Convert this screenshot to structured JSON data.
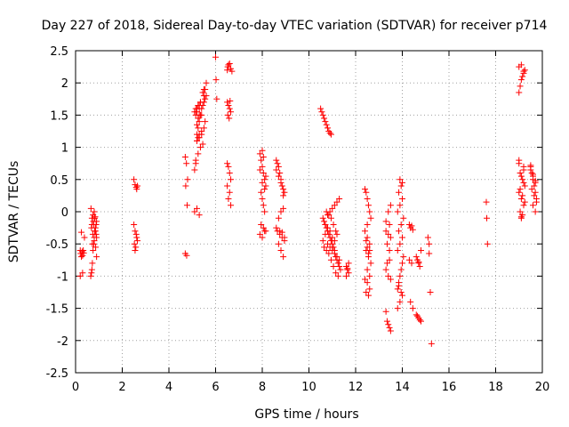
{
  "chart_data": {
    "type": "scatter",
    "title": "Day 227 of 2018, Sidereal Day-to-day VTEC variation (SDTVAR) for receiver p714",
    "xlabel": "GPS time / hours",
    "ylabel": "SDTVAR / TECUs",
    "xlim": [
      0,
      20
    ],
    "ylim": [
      -2.5,
      2.5
    ],
    "xticks": [
      0,
      2,
      4,
      6,
      8,
      10,
      12,
      14,
      16,
      18,
      20
    ],
    "yticks": [
      2.5,
      2,
      1.5,
      1,
      0.5,
      0,
      -0.5,
      -1,
      -1.5,
      -2,
      -2.5
    ],
    "ytick_labels": [
      "2.5",
      "2",
      "1.5",
      "1",
      "0.5",
      "0",
      "-0.5",
      "-1",
      "-1.5",
      "-2",
      "-2.5"
    ],
    "grid": true,
    "marker": "plus",
    "color": "#ff0000",
    "series": [
      {
        "name": "SDTVAR",
        "x": [
          0.2,
          0.22,
          0.25,
          0.28,
          0.3,
          0.33,
          0.35,
          0.2,
          0.3,
          0.38,
          0.25,
          0.65,
          0.68,
          0.7,
          0.72,
          0.75,
          0.78,
          0.8,
          0.82,
          0.85,
          0.88,
          0.9,
          0.7,
          0.75,
          0.8,
          0.85,
          0.9,
          0.72,
          0.78,
          0.82,
          0.88,
          0.66,
          0.7,
          0.74,
          0.8,
          0.86,
          0.9,
          0.68,
          0.76,
          0.84,
          2.5,
          2.55,
          2.6,
          2.62,
          2.65,
          2.5,
          2.55,
          2.6,
          2.65,
          2.52,
          2.58,
          2.62,
          2.55,
          4.7,
          4.75,
          4.8,
          4.72,
          4.78,
          4.7,
          4.76,
          5.1,
          5.15,
          5.2,
          5.25,
          5.3,
          5.35,
          5.4,
          5.45,
          5.5,
          5.55,
          5.6,
          5.15,
          5.2,
          5.3,
          5.35,
          5.45,
          5.5,
          5.6,
          5.2,
          5.25,
          5.3,
          5.4,
          5.5,
          5.55,
          5.1,
          5.2,
          5.3,
          5.4,
          5.15,
          5.25,
          5.35,
          5.45,
          5.2,
          5.3,
          5.4,
          5.1,
          5.2,
          5.3,
          5.2,
          5.25,
          5.3,
          5.15,
          5.25,
          5.35,
          5.5,
          5.55,
          6.0,
          6.02,
          6.05,
          6.5,
          6.52,
          6.55,
          6.6,
          6.65,
          6.7,
          6.5,
          6.55,
          6.6,
          6.65,
          6.52,
          6.58,
          6.62,
          6.5,
          6.55,
          6.6,
          6.65,
          6.5,
          6.6,
          6.55,
          6.65,
          7.9,
          7.95,
          8.0,
          8.05,
          8.1,
          8.15,
          7.95,
          8.0,
          8.05,
          8.1,
          8.15,
          7.9,
          8.0,
          8.1,
          7.95,
          8.05,
          8.15,
          7.9,
          8.0,
          8.1,
          8.0,
          8.05,
          8.6,
          8.65,
          8.7,
          8.75,
          8.8,
          8.85,
          8.9,
          8.95,
          8.6,
          8.7,
          8.8,
          8.9,
          8.65,
          8.75,
          8.85,
          8.95,
          8.7,
          8.8,
          8.9,
          8.6,
          8.75,
          8.85,
          8.95,
          8.7,
          8.8,
          8.9,
          10.5,
          10.55,
          10.6,
          10.65,
          10.7,
          10.75,
          10.8,
          10.85,
          10.9,
          10.95,
          10.6,
          10.65,
          10.7,
          10.75,
          10.8,
          10.85,
          10.9,
          10.95,
          11.0,
          11.05,
          11.1,
          11.15,
          11.2,
          11.25,
          11.3,
          11.35,
          10.6,
          10.7,
          10.8,
          10.9,
          11.0,
          11.1,
          11.2,
          11.3,
          10.65,
          10.75,
          10.85,
          10.95,
          11.05,
          11.15,
          11.25,
          10.7,
          10.8,
          10.9,
          11.0,
          11.1,
          11.2,
          10.75,
          10.85,
          10.95,
          11.05,
          11.15,
          10.8,
          10.9,
          11.0,
          11.1,
          11.2,
          11.3,
          11.6,
          11.65,
          11.7,
          11.6,
          11.7,
          11.65,
          12.4,
          12.45,
          12.5,
          12.55,
          12.6,
          12.65,
          12.4,
          12.5,
          12.6,
          12.45,
          12.55,
          12.65,
          12.5,
          12.6,
          12.4,
          12.5,
          12.6,
          12.45,
          12.55,
          12.5,
          12.6,
          12.55,
          12.45,
          12.5,
          13.3,
          13.35,
          13.4,
          13.45,
          13.5,
          13.3,
          13.4,
          13.5,
          13.35,
          13.45,
          13.3,
          13.4,
          13.5,
          13.35,
          13.45,
          13.4,
          13.5,
          13.3,
          13.45,
          13.8,
          13.85,
          13.9,
          13.95,
          14.0,
          14.05,
          13.8,
          13.9,
          14.0,
          13.85,
          13.95,
          14.05,
          13.8,
          13.9,
          14.0,
          13.85,
          13.95,
          13.9,
          14.0,
          13.8,
          13.9,
          14.0,
          13.85,
          13.95,
          14.3,
          14.35,
          14.4,
          14.45,
          14.3,
          14.4,
          14.35,
          14.45,
          14.6,
          14.65,
          14.7,
          14.75,
          14.8,
          14.6,
          14.7,
          14.8,
          14.65,
          14.75,
          14.7,
          15.1,
          15.15,
          15.2,
          15.25,
          15.15,
          17.6,
          17.62,
          17.65,
          19.0,
          19.05,
          19.1,
          19.15,
          19.2,
          19.25,
          19.0,
          19.1,
          19.2,
          19.05,
          19.15,
          19.25,
          19.0,
          19.1,
          19.2,
          19.05,
          19.15,
          19.1,
          19.2,
          19.0,
          19.1,
          19.2,
          19.05,
          19.15,
          19.25,
          19.1,
          19.0,
          19.2,
          19.5,
          19.55,
          19.6,
          19.65,
          19.7,
          19.75,
          19.5,
          19.6,
          19.7,
          19.55,
          19.65,
          19.75,
          19.6,
          19.7,
          19.5,
          19.6,
          19.7
        ],
        "y": [
          -0.6,
          -0.65,
          -0.7,
          -0.62,
          -0.68,
          -0.6,
          -0.64,
          -1.0,
          -0.95,
          -0.4,
          -0.32,
          -1.0,
          -0.95,
          -0.9,
          -0.8,
          -0.6,
          -0.5,
          -0.4,
          -0.3,
          -0.25,
          -0.2,
          -0.15,
          -0.1,
          -0.05,
          0.0,
          -0.3,
          -0.4,
          -0.5,
          -0.2,
          -0.1,
          -0.35,
          0.05,
          -0.2,
          -0.35,
          -0.45,
          -0.55,
          -0.7,
          -0.25,
          -0.15,
          -0.08,
          0.5,
          0.42,
          0.38,
          0.35,
          0.4,
          -0.2,
          -0.3,
          -0.35,
          -0.45,
          -0.5,
          -0.55,
          -0.4,
          -0.6,
          0.85,
          0.75,
          0.5,
          0.4,
          0.1,
          -0.65,
          -0.68,
          0.65,
          0.75,
          1.2,
          1.3,
          1.4,
          1.5,
          1.6,
          1.65,
          1.7,
          1.75,
          1.8,
          1.5,
          1.55,
          1.6,
          1.7,
          1.85,
          1.9,
          2.0,
          1.1,
          1.15,
          1.2,
          1.25,
          1.3,
          1.4,
          1.55,
          1.6,
          1.65,
          1.5,
          0.8,
          0.9,
          1.0,
          1.05,
          1.1,
          1.15,
          1.2,
          0.0,
          0.05,
          -0.05,
          1.35,
          1.45,
          1.5,
          1.6,
          1.65,
          1.7,
          1.8,
          1.9,
          2.4,
          2.05,
          1.75,
          2.2,
          2.25,
          2.28,
          2.3,
          2.22,
          2.18,
          1.7,
          1.65,
          1.6,
          1.55,
          1.5,
          1.45,
          1.72,
          0.75,
          0.7,
          0.6,
          0.5,
          0.4,
          0.3,
          0.2,
          0.1,
          0.9,
          0.8,
          0.7,
          0.6,
          0.5,
          0.4,
          0.3,
          0.2,
          0.1,
          0.0,
          0.55,
          0.65,
          0.45,
          0.35,
          -0.2,
          -0.25,
          -0.3,
          -0.35,
          -0.4,
          -0.3,
          0.95,
          0.85,
          0.8,
          0.75,
          0.7,
          0.6,
          0.5,
          0.4,
          0.35,
          0.3,
          0.65,
          0.55,
          0.45,
          0.25,
          -0.3,
          -0.35,
          -0.4,
          -0.45,
          -0.5,
          -0.6,
          -0.7,
          -0.25,
          -0.3,
          -0.32,
          -0.4,
          -0.1,
          0.0,
          0.05,
          1.6,
          1.55,
          1.5,
          1.45,
          1.4,
          1.35,
          1.3,
          1.25,
          1.22,
          1.2,
          -0.1,
          -0.15,
          -0.2,
          -0.25,
          -0.3,
          -0.35,
          -0.4,
          -0.45,
          -0.5,
          -0.55,
          -0.6,
          -0.7,
          -0.75,
          -0.8,
          -0.85,
          -0.9,
          -0.45,
          -0.35,
          -0.05,
          0.0,
          0.05,
          0.1,
          0.15,
          0.2,
          -0.55,
          -0.6,
          -0.65,
          -0.75,
          -0.85,
          -0.95,
          -1.0,
          -0.2,
          -0.25,
          -0.3,
          -0.4,
          -0.45,
          -0.35,
          0.0,
          -0.05,
          -0.1,
          -0.2,
          -0.3,
          -0.5,
          -0.55,
          -0.6,
          -0.65,
          -0.7,
          -0.75,
          -0.85,
          -0.9,
          -0.95,
          -1.0,
          -0.8,
          -0.88,
          0.35,
          0.3,
          0.2,
          0.1,
          0.0,
          -0.1,
          -0.3,
          -0.4,
          -0.5,
          -0.6,
          -0.7,
          -0.8,
          -0.9,
          -1.0,
          -1.05,
          -1.1,
          -1.2,
          -1.25,
          -1.3,
          -0.55,
          -0.6,
          -0.65,
          -0.45,
          -0.2,
          -1.55,
          -1.7,
          -1.75,
          -1.8,
          -1.85,
          -0.3,
          -0.35,
          -0.4,
          -0.5,
          -0.6,
          -0.9,
          -1.0,
          -1.05,
          -0.8,
          -0.75,
          0.0,
          0.1,
          -0.15,
          -0.2,
          -1.2,
          -1.1,
          -1.0,
          -0.9,
          -0.8,
          -0.7,
          -0.6,
          -0.5,
          -0.4,
          -0.3,
          -0.2,
          -0.1,
          0.0,
          0.1,
          0.2,
          0.3,
          0.4,
          0.5,
          0.45,
          -1.5,
          -1.4,
          -1.3,
          -1.15,
          -1.25,
          -0.2,
          -0.25,
          -0.22,
          -0.28,
          -0.75,
          -0.8,
          -1.4,
          -1.5,
          -0.7,
          -0.75,
          -0.8,
          -0.85,
          -0.6,
          -1.6,
          -1.65,
          -1.7,
          -1.62,
          -1.68,
          -0.78,
          -0.4,
          -0.65,
          -1.25,
          -2.05,
          -0.5,
          0.15,
          -0.1,
          -0.5,
          1.85,
          1.95,
          2.05,
          2.1,
          2.15,
          2.2,
          2.25,
          2.28,
          0.7,
          0.6,
          0.5,
          0.4,
          0.3,
          0.2,
          0.1,
          0.0,
          -0.05,
          -0.1,
          0.65,
          0.75,
          0.55,
          0.45,
          0.35,
          0.25,
          0.15,
          -0.08,
          0.8,
          2.18,
          0.7,
          0.6,
          0.5,
          0.4,
          0.3,
          0.2,
          0.65,
          0.55,
          0.45,
          0.35,
          0.25,
          0.15,
          0.1,
          0.0,
          0.72,
          0.58,
          0.48
        ]
      }
    ]
  }
}
